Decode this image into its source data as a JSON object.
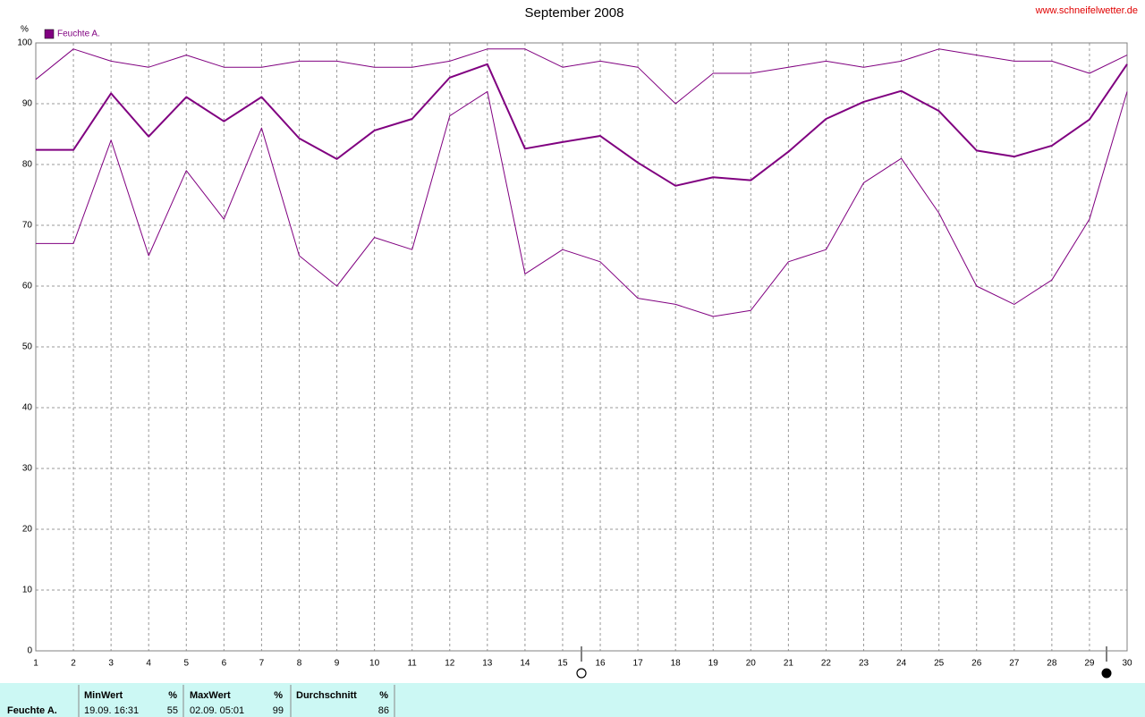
{
  "chart_data": {
    "type": "line",
    "title": "September 2008",
    "source": "www.schneifelwetter.de",
    "y_unit": "%",
    "x": [
      1,
      2,
      3,
      4,
      5,
      6,
      7,
      8,
      9,
      10,
      11,
      12,
      13,
      14,
      15,
      16,
      17,
      18,
      19,
      20,
      21,
      22,
      23,
      24,
      25,
      26,
      27,
      28,
      29,
      30
    ],
    "xlim": [
      1,
      30
    ],
    "xticks": [
      1,
      2,
      3,
      4,
      5,
      6,
      7,
      8,
      9,
      10,
      11,
      12,
      13,
      14,
      15,
      16,
      17,
      18,
      19,
      20,
      21,
      22,
      23,
      24,
      25,
      26,
      27,
      28,
      29,
      30
    ],
    "ylim": [
      0,
      100
    ],
    "yticks": [
      0,
      10,
      20,
      30,
      40,
      50,
      60,
      70,
      80,
      90,
      100
    ],
    "grid": true,
    "legend": "top-left",
    "series": [
      {
        "color": "#800080",
        "width": 1,
        "values": [
          94,
          99,
          97,
          96,
          98,
          96,
          96,
          97,
          97,
          96,
          96,
          97,
          99,
          99,
          96,
          97,
          96,
          90,
          95,
          95,
          96,
          97,
          96,
          97,
          99,
          98,
          97,
          97,
          95,
          98
        ]
      },
      {
        "name": "Feuchte A.",
        "color": "#800080",
        "width": 2,
        "values": [
          82.4,
          82.4,
          91.7,
          84.6,
          91.1,
          87.1,
          91.1,
          84.3,
          80.9,
          85.6,
          87.5,
          94.3,
          96.5,
          82.6,
          83.7,
          84.7,
          80.3,
          76.5,
          77.9,
          77.4,
          82.1,
          87.5,
          90.3,
          92.1,
          88.8,
          82.3,
          81.3,
          83.1,
          87.4,
          96.5
        ]
      },
      {
        "color": "#800080",
        "width": 1,
        "values": [
          67,
          67,
          84,
          65,
          79,
          71,
          86,
          65,
          60,
          68,
          66,
          88,
          92,
          62,
          66,
          64,
          58,
          57,
          55,
          56,
          64,
          66,
          77,
          81,
          72,
          60,
          57,
          61,
          71,
          92
        ]
      }
    ]
  },
  "table": {
    "row_label": "Feuchte A.",
    "columns": [
      {
        "header": "MinWert",
        "unit": "%",
        "time": "19.09. 16:31",
        "value": 55
      },
      {
        "header": "MaxWert",
        "unit": "%",
        "time": "02.09. 05:01",
        "value": 99
      },
      {
        "header": "Durchschnitt",
        "unit": "%",
        "value": 86
      }
    ]
  }
}
